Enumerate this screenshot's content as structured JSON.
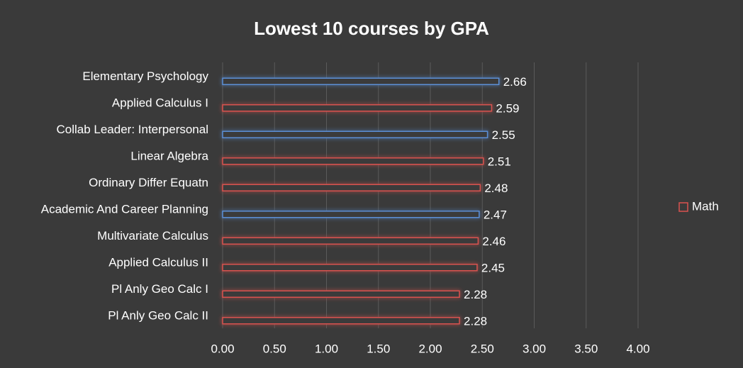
{
  "chart_data": {
    "type": "hbar",
    "title": "Lowest 10 courses by GPA",
    "categories": [
      "Elementary Psychology",
      "Applied Calculus I",
      "Collab Leader: Interpersonal",
      "Linear Algebra",
      "Ordinary Differ Equatn",
      "Academic And Career Planning",
      "Multivariate Calculus",
      "Applied Calculus II",
      "Pl Anly Geo Calc I",
      "Pl Anly Geo Calc II"
    ],
    "series": [
      {
        "name": "Math",
        "color": "#d9534f",
        "values": [
          2.66,
          2.59,
          2.55,
          2.51,
          2.48,
          2.47,
          2.46,
          2.45,
          2.28,
          2.28
        ],
        "point_colors": [
          "#5b8fd6",
          "#d9534f",
          "#5b8fd6",
          "#d9534f",
          "#d9534f",
          "#5b8fd6",
          "#d9534f",
          "#d9534f",
          "#d9534f",
          "#d9534f"
        ]
      }
    ],
    "xlim": [
      0,
      4
    ],
    "xticks": [
      {
        "value": 0,
        "label": "0.00"
      },
      {
        "value": 0.5,
        "label": "0.50"
      },
      {
        "value": 1,
        "label": "1.00"
      },
      {
        "value": 1.5,
        "label": "1.50"
      },
      {
        "value": 2,
        "label": "2.00"
      },
      {
        "value": 2.5,
        "label": "2.50"
      },
      {
        "value": 3,
        "label": "3.00"
      },
      {
        "value": 3.5,
        "label": "3.50"
      },
      {
        "value": 4,
        "label": "4.00"
      }
    ],
    "grid": true,
    "legend": "right"
  }
}
